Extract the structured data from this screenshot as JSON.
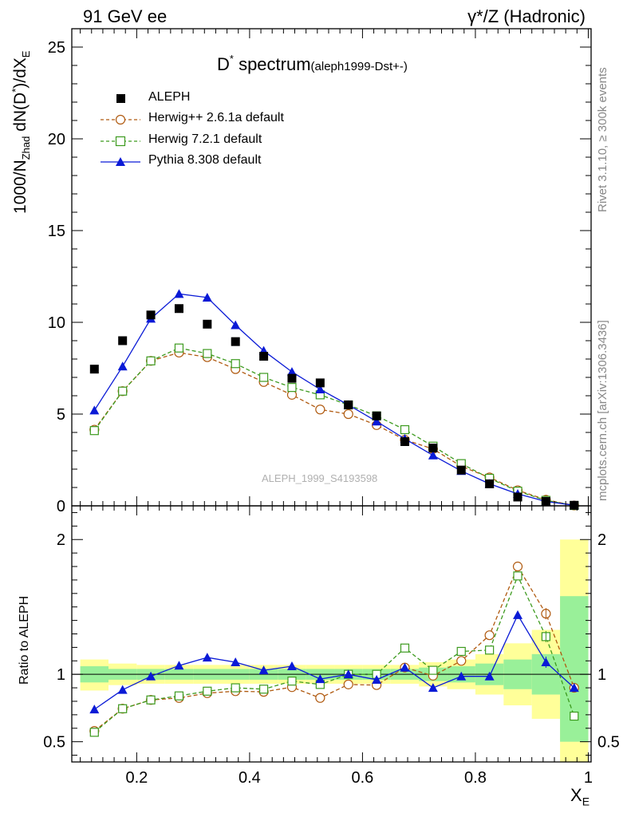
{
  "header": {
    "left": "91 GeV ee",
    "right": "γ*/Z (Hadronic)"
  },
  "side_labels": {
    "rivet": "Rivet 3.1.10, ≥ 300k events",
    "mcplots": "mcplots.cern.ch [arXiv:1306.3436]"
  },
  "watermark": "ALEPH_1999_S4193598",
  "chart_data": [
    {
      "type": "scatter",
      "title": "D* spectrum",
      "title_main": "D",
      "title_sup": "*",
      "title_rest": " spectrum",
      "title_tag": "(aleph1999-Dst+-)",
      "ylabel": "1000/N_Zhad dN(D*)/dX_E",
      "ylabel_parts": {
        "a": "1000/N",
        "a_sub": "Zhad",
        "b": " dN(D",
        "b_sup": "*",
        "c": ")/dX",
        "c_sub": "E"
      },
      "xlim": [
        0.085,
        1.005
      ],
      "ylim": [
        0,
        26
      ],
      "y_ticks": [
        "0",
        "5",
        "10",
        "15",
        "20",
        "25"
      ],
      "x": [
        0.125,
        0.175,
        0.225,
        0.275,
        0.325,
        0.375,
        0.425,
        0.475,
        0.525,
        0.575,
        0.625,
        0.675,
        0.725,
        0.775,
        0.825,
        0.875,
        0.925,
        0.975
      ],
      "series": [
        {
          "name": "ALEPH",
          "color": "#000000",
          "marker": "filled-square",
          "line": "none",
          "values": [
            7.45,
            9.0,
            10.4,
            10.75,
            9.9,
            8.95,
            8.15,
            6.95,
            6.7,
            5.5,
            4.9,
            3.5,
            3.15,
            1.95,
            1.2,
            0.48,
            0.24,
            0.03
          ]
        },
        {
          "name": "Herwig++ 2.6.1a default",
          "color": "#b05a10",
          "marker": "open-circle",
          "line": "dashed",
          "values": [
            4.15,
            6.25,
            7.9,
            8.35,
            8.1,
            7.45,
            6.75,
            6.05,
            5.25,
            5.0,
            4.4,
            3.6,
            3.1,
            2.15,
            1.55,
            0.85,
            0.33,
            0.02
          ]
        },
        {
          "name": "Herwig 7.2.1 default",
          "color": "#3c9a1e",
          "marker": "open-square",
          "line": "dashed",
          "values": [
            4.1,
            6.25,
            7.9,
            8.6,
            8.3,
            7.75,
            7.0,
            6.45,
            6.05,
            5.5,
            4.9,
            4.15,
            3.25,
            2.3,
            1.5,
            0.8,
            0.3,
            0.02
          ]
        },
        {
          "name": "Pythia 8.308 default",
          "color": "#0a1ad6",
          "marker": "filled-triangle",
          "line": "solid",
          "values": [
            5.2,
            7.6,
            10.2,
            11.55,
            11.35,
            9.85,
            8.45,
            7.3,
            6.35,
            5.5,
            4.6,
            3.65,
            2.75,
            1.9,
            1.2,
            0.65,
            0.24,
            0.03
          ]
        }
      ]
    },
    {
      "type": "scatter",
      "ylabel": "Ratio to ALEPH",
      "xlabel": "X_E",
      "xlabel_parts": {
        "a": "X",
        "a_sub": "E"
      },
      "xlim": [
        0.085,
        1.005
      ],
      "ylim": [
        0.35,
        2.25
      ],
      "y_ticks": [
        "0.5",
        "1",
        "2"
      ],
      "x_ticks": [
        "0.2",
        "0.4",
        "0.6",
        "0.8",
        "1"
      ],
      "x": [
        0.125,
        0.175,
        0.225,
        0.275,
        0.325,
        0.375,
        0.425,
        0.475,
        0.525,
        0.575,
        0.625,
        0.675,
        0.725,
        0.775,
        0.825,
        0.875,
        0.925,
        0.975
      ],
      "bands": {
        "x_edges": [
          0.1,
          0.15,
          0.2,
          0.25,
          0.3,
          0.35,
          0.4,
          0.45,
          0.5,
          0.55,
          0.6,
          0.65,
          0.7,
          0.75,
          0.8,
          0.85,
          0.9,
          0.95,
          1.0
        ],
        "yellow_color": "#ffff99",
        "green_color": "#99f099",
        "yellow": [
          [
            0.88,
            1.11
          ],
          [
            0.92,
            1.08
          ],
          [
            0.93,
            1.07
          ],
          [
            0.93,
            1.07
          ],
          [
            0.93,
            1.07
          ],
          [
            0.93,
            1.07
          ],
          [
            0.93,
            1.07
          ],
          [
            0.93,
            1.07
          ],
          [
            0.93,
            1.07
          ],
          [
            0.93,
            1.07
          ],
          [
            0.93,
            1.07
          ],
          [
            0.93,
            1.07
          ],
          [
            0.91,
            1.09
          ],
          [
            0.89,
            1.11
          ],
          [
            0.85,
            1.15
          ],
          [
            0.77,
            1.23
          ],
          [
            0.67,
            1.33
          ],
          [
            0.3,
            2.0
          ]
        ],
        "green": [
          [
            0.94,
            1.06
          ],
          [
            0.96,
            1.04
          ],
          [
            0.96,
            1.04
          ],
          [
            0.96,
            1.04
          ],
          [
            0.96,
            1.04
          ],
          [
            0.96,
            1.04
          ],
          [
            0.96,
            1.04
          ],
          [
            0.96,
            1.04
          ],
          [
            0.96,
            1.04
          ],
          [
            0.96,
            1.04
          ],
          [
            0.96,
            1.04
          ],
          [
            0.96,
            1.04
          ],
          [
            0.95,
            1.05
          ],
          [
            0.94,
            1.06
          ],
          [
            0.92,
            1.08
          ],
          [
            0.89,
            1.11
          ],
          [
            0.85,
            1.15
          ],
          [
            0.5,
            1.58
          ]
        ]
      },
      "series": [
        {
          "name": "Herwig++ 2.6.1a default",
          "color": "#b05a10",
          "marker": "open-circle",
          "line": "dashed",
          "values": [
            0.58,
            0.745,
            0.81,
            0.825,
            0.86,
            0.875,
            0.87,
            0.905,
            0.825,
            0.925,
            0.92,
            1.05,
            0.99,
            1.1,
            1.29,
            1.8,
            1.45,
            0.9
          ]
        },
        {
          "name": "Herwig 7.2.1 default",
          "color": "#3c9a1e",
          "marker": "open-square",
          "line": "dashed",
          "values": [
            0.57,
            0.745,
            0.81,
            0.84,
            0.875,
            0.9,
            0.89,
            0.95,
            0.925,
            1.0,
            1.0,
            1.195,
            1.03,
            1.17,
            1.18,
            1.73,
            1.28,
            0.69
          ]
        },
        {
          "name": "Pythia 8.308 default",
          "color": "#0a1ad6",
          "marker": "filled-triangle",
          "line": "solid",
          "values": [
            0.74,
            0.885,
            0.985,
            1.065,
            1.125,
            1.09,
            1.03,
            1.06,
            0.965,
            1.0,
            0.96,
            1.05,
            0.9,
            0.985,
            0.985,
            1.44,
            1.09,
            0.9
          ]
        }
      ]
    }
  ]
}
